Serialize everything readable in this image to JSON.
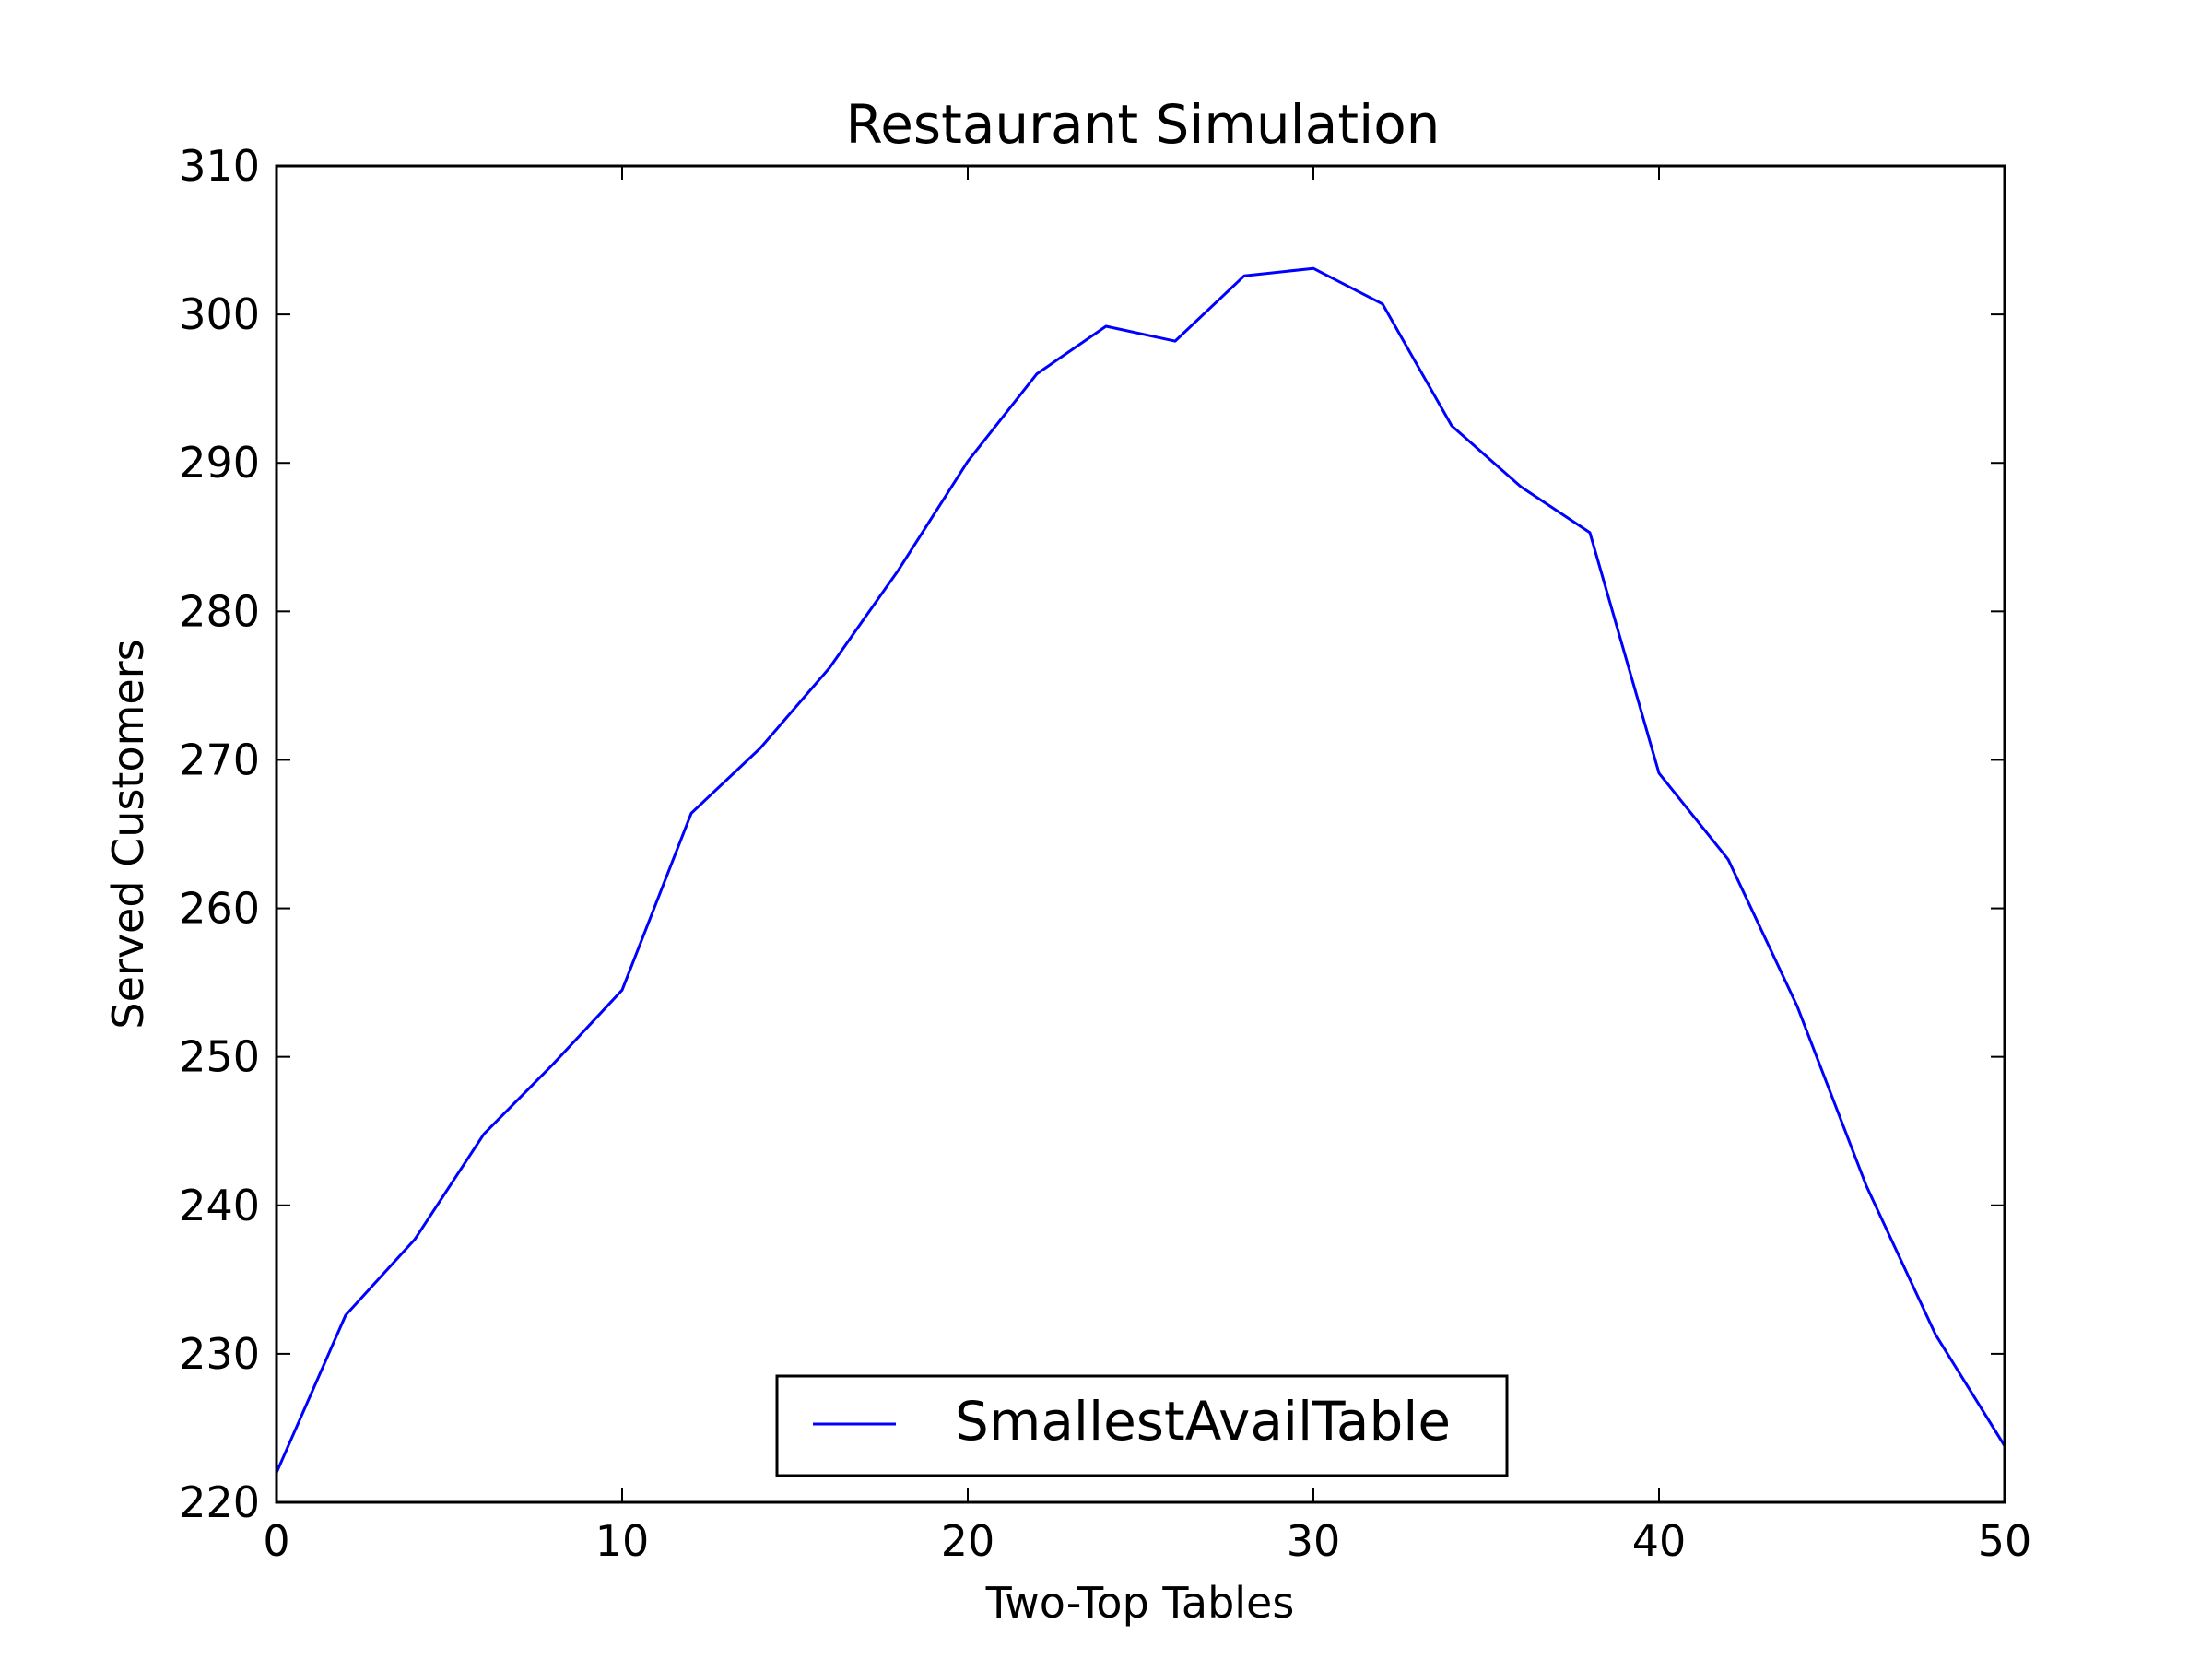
{
  "chart_data": {
    "type": "line",
    "title": "Restaurant Simulation",
    "xlabel": "Two-Top Tables",
    "ylabel": "Served Customers",
    "xlim": [
      0,
      50
    ],
    "ylim": [
      220,
      310
    ],
    "xticks": [
      0,
      10,
      20,
      30,
      40,
      50
    ],
    "yticks": [
      220,
      230,
      240,
      250,
      260,
      270,
      280,
      290,
      300,
      310
    ],
    "grid": false,
    "legend_position": "lower center",
    "series": [
      {
        "name": "SmallestAvailTable",
        "color": "#0000ff",
        "x": [
          0,
          2,
          4,
          6,
          8,
          10,
          12,
          14,
          16,
          18,
          20,
          22,
          24,
          26,
          28,
          30,
          32,
          34,
          36,
          38,
          40,
          42,
          44,
          46,
          48,
          50
        ],
        "y": [
          222,
          232.6,
          237.7,
          244.8,
          249.5,
          254.5,
          266.4,
          270.8,
          276.2,
          282.8,
          290.1,
          296.0,
          299.2,
          298.2,
          302.6,
          303.1,
          300.7,
          292.5,
          288.4,
          285.3,
          269.1,
          263.3,
          253.4,
          241.3,
          231.3,
          223.8
        ]
      }
    ]
  }
}
